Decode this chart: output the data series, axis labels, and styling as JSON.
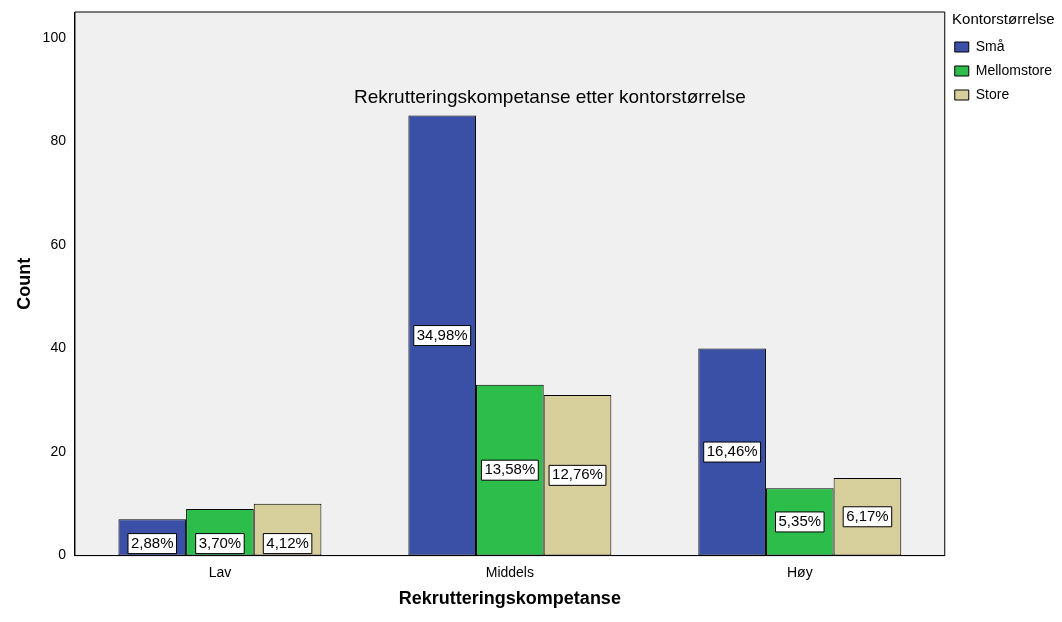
{
  "chart_data": {
    "type": "bar",
    "title": "Rekrutteringskompetanse etter kontorstørrelse",
    "xlabel": "Rekrutteringskompetanse",
    "ylabel": "Count",
    "legend_title": "Kontorstørrelse",
    "legend": "top right",
    "categories": [
      "Lav",
      "Middels",
      "Høy"
    ],
    "series": [
      {
        "name": "Små",
        "color": "#3a4fa6",
        "values": [
          7,
          85,
          40
        ]
      },
      {
        "name": "Mellomstore",
        "color": "#2dbd4a",
        "values": [
          9,
          33,
          13
        ]
      },
      {
        "name": "Store",
        "color": "#d8d09c",
        "values": [
          10,
          31,
          15
        ]
      }
    ],
    "annotations": [
      "2,88%",
      "3,70%",
      "4,12%",
      "34,98%",
      "13,58%",
      "12,76%",
      "16,46%",
      "5,35%",
      "6,17%"
    ],
    "ylim": [
      0,
      105
    ],
    "yticks": [
      0,
      20,
      40,
      60,
      80,
      100
    ]
  }
}
